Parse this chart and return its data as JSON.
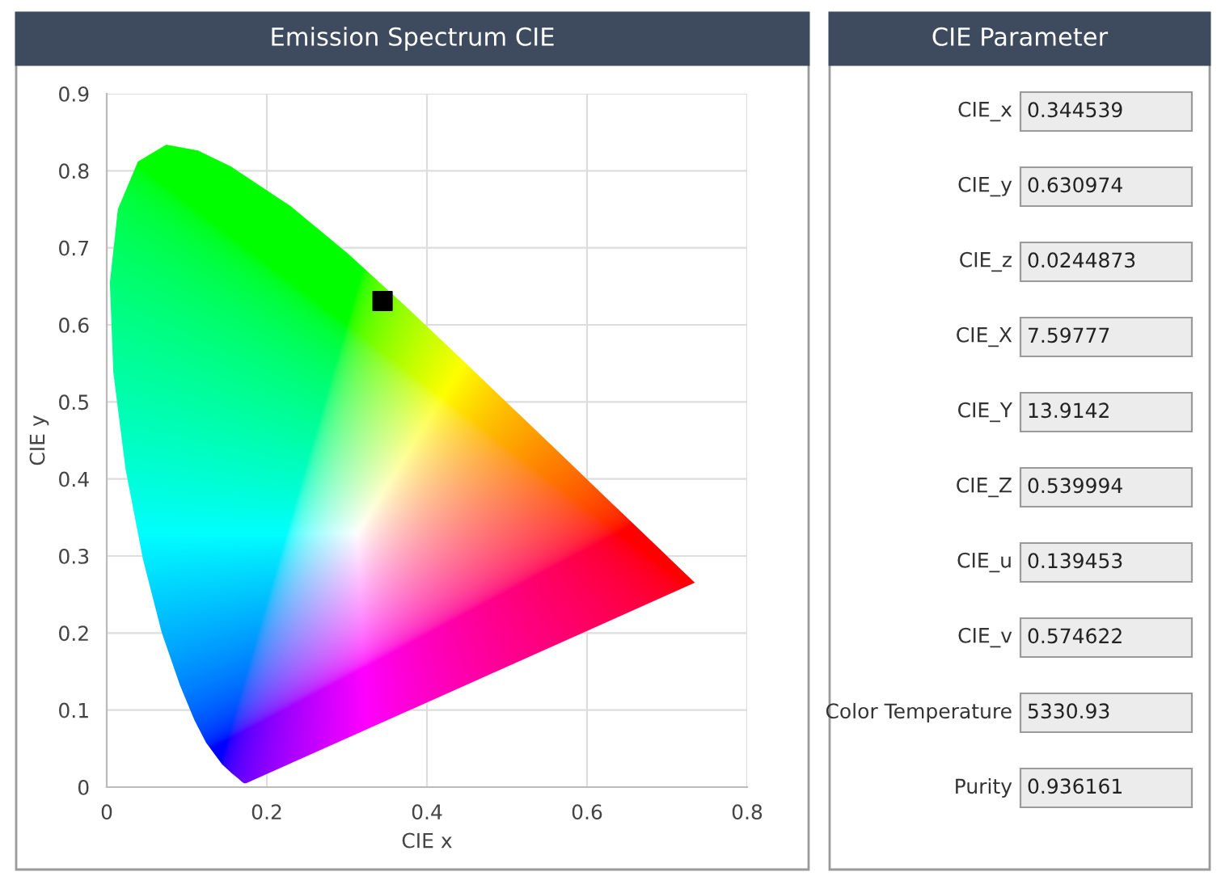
{
  "chart_data": [
    {
      "type": "scatter",
      "title": "Emission Spectrum CIE",
      "xlabel": "CIE x",
      "ylabel": "CIE y",
      "x": [
        0.344539
      ],
      "values": [
        0.630974
      ],
      "color": "#000000",
      "marker": "square",
      "xlim": [
        0,
        0.8
      ],
      "ylim": [
        0,
        0.9
      ],
      "xticks": [
        0,
        0.2,
        0.4,
        0.6,
        0.8
      ],
      "yticks": [
        0,
        0.1,
        0.2,
        0.3,
        0.4,
        0.5,
        0.6,
        0.7,
        0.8,
        0.9
      ],
      "grid": true
    },
    {
      "type": "other",
      "title": "CIE Parameter",
      "annotations": [
        "CIE_x",
        "0.344539",
        "CIE_y",
        "0.630974",
        "CIE_z",
        "0.0244873",
        "CIE_X",
        "7.59777",
        "CIE_Y",
        "13.9142",
        "CIE_Z",
        "0.539994",
        "CIE_u",
        "0.139453",
        "CIE_v",
        "0.574622",
        "Color Temperature",
        "5330.93",
        "Purity",
        "0.936161"
      ]
    }
  ]
}
